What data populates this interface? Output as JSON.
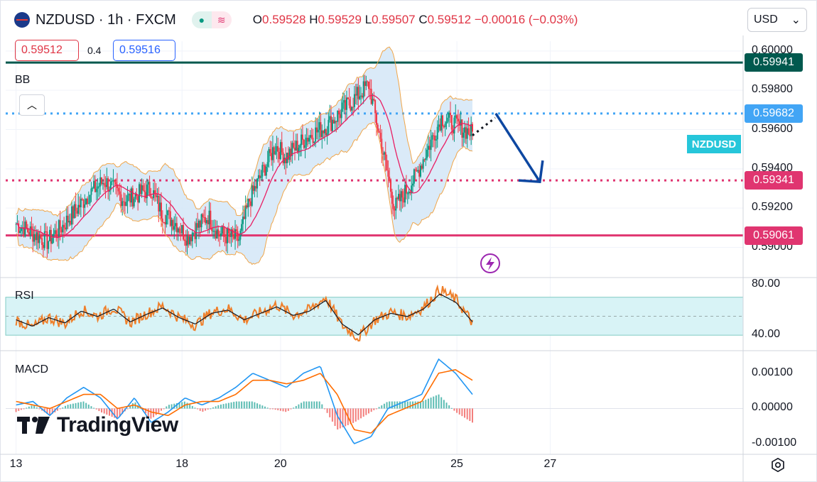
{
  "header": {
    "symbol_title": "NZDUSD · 1h · FXCM",
    "flag_icon": "new-zealand-flag-icon",
    "ohlc": {
      "open_label": "O",
      "open": "0.59528",
      "high_label": "H",
      "high": "0.59529",
      "low_label": "L",
      "low": "0.59507",
      "close_label": "C",
      "close": "0.59512",
      "change": "−0.00016 (−0.03%)"
    },
    "currency": "USD"
  },
  "trade": {
    "sell_price": "0.59512",
    "spread": "0.4",
    "buy_price": "0.59516"
  },
  "indicators": {
    "bb_label": "BB",
    "rsi_label": "RSI",
    "macd_label": "MACD",
    "symbol_badge": "NZDUSD"
  },
  "logo": {
    "text": "TradingView"
  },
  "colors": {
    "up": "#089981",
    "down": "#f23645",
    "bb_fill": "#d3e6f7",
    "bb_band": "#f0a64a",
    "bb_mid": "#e91e63",
    "level_teal": "#00594e",
    "level_blue": "#42a5f5",
    "level_pink": "#e03570",
    "arrow": "#0d47a1",
    "rsi": "#ef7f2a",
    "rsi_ma": "#131722",
    "macd": "#2196f3",
    "signal": "#ff6d00"
  },
  "chart_data": [
    {
      "type": "candlestick",
      "title": "NZDUSD · 1h · FXCM",
      "ylim": [
        0.5885,
        0.6005
      ],
      "y_ticks": [
        "0.60000",
        "0.59800",
        "0.59600",
        "0.59400",
        "0.59200",
        "0.59000"
      ],
      "x_ticks": [
        "13",
        "18",
        "20",
        "25",
        "27"
      ],
      "series_path": {
        "x": [
          0,
          6,
          9,
          14,
          17,
          21,
          26,
          28,
          31,
          33,
          37,
          39,
          43,
          45,
          48,
          50,
          52,
          56,
          60,
          68,
          73,
          77,
          82,
          88
        ],
        "close": [
          0.5912,
          0.5903,
          0.5911,
          0.5927,
          0.5934,
          0.5924,
          0.593,
          0.5918,
          0.5912,
          0.5905,
          0.5916,
          0.5907,
          0.5904,
          0.5924,
          0.5941,
          0.5952,
          0.5946,
          0.5956,
          0.5962,
          0.5983,
          0.592,
          0.5936,
          0.5966,
          0.5958
        ]
      },
      "horizontal_levels": [
        {
          "value": 0.59941,
          "label": "0.59941",
          "style": "solid",
          "color": "#00594e"
        },
        {
          "value": 0.59682,
          "label": "0.59682",
          "style": "dotted",
          "color": "#42a5f5"
        },
        {
          "value": 0.59341,
          "label": "0.59341",
          "style": "dotted",
          "color": "#e03570"
        },
        {
          "value": 0.59061,
          "label": "0.59061",
          "style": "solid",
          "color": "#e03570"
        }
      ],
      "bollinger_bands": {
        "label": "BB"
      },
      "projection": "down arrow from about 0.5968 to 0.5934 (Mar 25 – 27)"
    },
    {
      "type": "line",
      "name": "RSI",
      "ylim": [
        30,
        85
      ],
      "y_ticks": [
        "80.00",
        "40.00"
      ],
      "band": [
        40,
        70
      ],
      "values": [
        52,
        46,
        54,
        49,
        60,
        55,
        62,
        50,
        57,
        63,
        54,
        48,
        58,
        61,
        52,
        58,
        64,
        56,
        60,
        70,
        48,
        38,
        52,
        58,
        55,
        62,
        76,
        68,
        50
      ]
    },
    {
      "type": "line",
      "name": "MACD",
      "ylim": [
        -0.0013,
        0.0016
      ],
      "y_ticks": [
        "0.00100",
        "0.00000",
        "-0.00100"
      ],
      "macd": [
        0.0001,
        0.0002,
        -0.0002,
        0.0003,
        0.0006,
        0.0003,
        -0.0003,
        0.0003,
        -0.0004,
        -0.0001,
        0.0003,
        0.0001,
        0.0003,
        0.0006,
        0.001,
        0.0008,
        0.0006,
        0.001,
        0.0012,
        -0.0002,
        -0.001,
        -0.0008,
        0.0,
        0.0002,
        0.0004,
        0.0014,
        0.001,
        0.0004
      ],
      "signal": [
        0.0002,
        0.0001,
        0.0,
        0.0002,
        0.0004,
        0.0004,
        0.0,
        0.0001,
        -0.0001,
        -0.0002,
        0.0001,
        0.0002,
        0.0002,
        0.0004,
        0.0008,
        0.0008,
        0.0007,
        0.0008,
        0.001,
        0.0004,
        -0.0006,
        -0.0007,
        -0.0002,
        0.0,
        0.0002,
        0.001,
        0.0011,
        0.0008
      ]
    }
  ]
}
